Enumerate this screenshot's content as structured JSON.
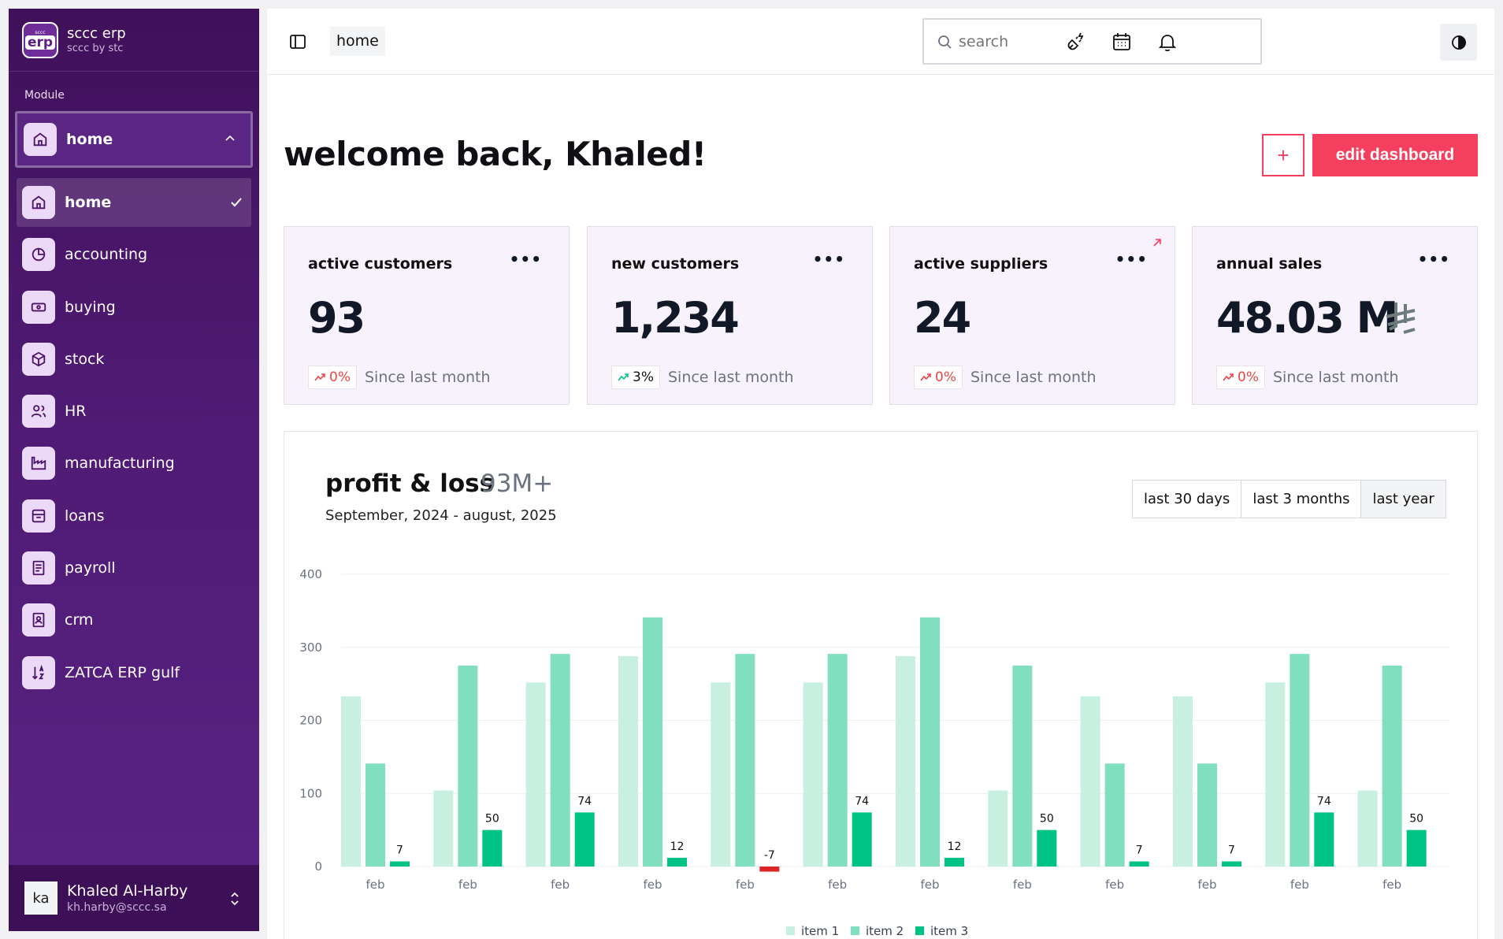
{
  "brand": {
    "logo_small": "sccc",
    "logo_big": "erp",
    "name": "sccc erp",
    "sub": "sccc by stc"
  },
  "sidebar": {
    "module_label": "Module",
    "module_selected": "home",
    "items": [
      {
        "label": "home",
        "icon": "home-icon",
        "active": true
      },
      {
        "label": "accounting",
        "icon": "pie-chart-icon"
      },
      {
        "label": "buying",
        "icon": "banknote-icon"
      },
      {
        "label": "stock",
        "icon": "package-icon"
      },
      {
        "label": "HR",
        "icon": "users-icon"
      },
      {
        "label": "manufacturing",
        "icon": "factory-icon"
      },
      {
        "label": "loans",
        "icon": "archive-icon"
      },
      {
        "label": "payroll",
        "icon": "receipt-icon"
      },
      {
        "label": "crm",
        "icon": "contact-icon"
      },
      {
        "label": "ZATCA ERP gulf",
        "icon": "sort-az-icon"
      }
    ]
  },
  "user": {
    "initials": "ka",
    "name": "Khaled Al-Harby",
    "email": "kh.harby@sccc.sa"
  },
  "topbar": {
    "breadcrumb": "home",
    "search_placeholder": "search"
  },
  "header": {
    "welcome": "welcome back, Khaled!",
    "add_label": "+",
    "edit_label": "edit dashboard"
  },
  "cards": [
    {
      "title": "active customers",
      "value": "93",
      "change": "0%",
      "direction": "down",
      "since": "Since last month"
    },
    {
      "title": "new customers",
      "value": "1,234",
      "change": "3%",
      "direction": "up",
      "since": "Since last month"
    },
    {
      "title": "active suppliers",
      "value": "24",
      "change": "0%",
      "direction": "down",
      "since": "Since last month"
    },
    {
      "title": "annual sales",
      "value": "48.03 M",
      "change": "0%",
      "direction": "down",
      "since": "Since last month"
    }
  ],
  "profit_loss": {
    "title": "profit & loss",
    "total": "93M+",
    "range": "September, 2024 - august, 2025",
    "filters": [
      "last 30 days",
      "last 3 months",
      "last year"
    ]
  },
  "colors": {
    "item1": "#c8f0e0",
    "item2": "#7fdfbf",
    "item3": "#00c284",
    "negative": "#dc2626",
    "accent": "#f43f5e",
    "sidebar": "#4e1a72"
  },
  "chart_data": {
    "type": "bar",
    "categories": [
      "feb",
      "feb",
      "feb",
      "feb",
      "feb",
      "feb",
      "feb",
      "feb",
      "feb",
      "feb",
      "feb",
      "feb"
    ],
    "ylim": [
      0,
      400
    ],
    "yticks": [
      0,
      100,
      200,
      300,
      400
    ],
    "series": [
      {
        "name": "item 1",
        "values": [
          233,
          104,
          252,
          288,
          252,
          252,
          288,
          104,
          233,
          233,
          252,
          104
        ]
      },
      {
        "name": "item 2",
        "values": [
          141,
          275,
          291,
          341,
          291,
          291,
          341,
          275,
          141,
          141,
          291,
          275
        ]
      },
      {
        "name": "item 3",
        "values": [
          7,
          50,
          74,
          12,
          -7,
          74,
          12,
          50,
          7,
          7,
          74,
          50
        ]
      }
    ],
    "data_labels": "item 3",
    "legend": "bottom-center"
  }
}
